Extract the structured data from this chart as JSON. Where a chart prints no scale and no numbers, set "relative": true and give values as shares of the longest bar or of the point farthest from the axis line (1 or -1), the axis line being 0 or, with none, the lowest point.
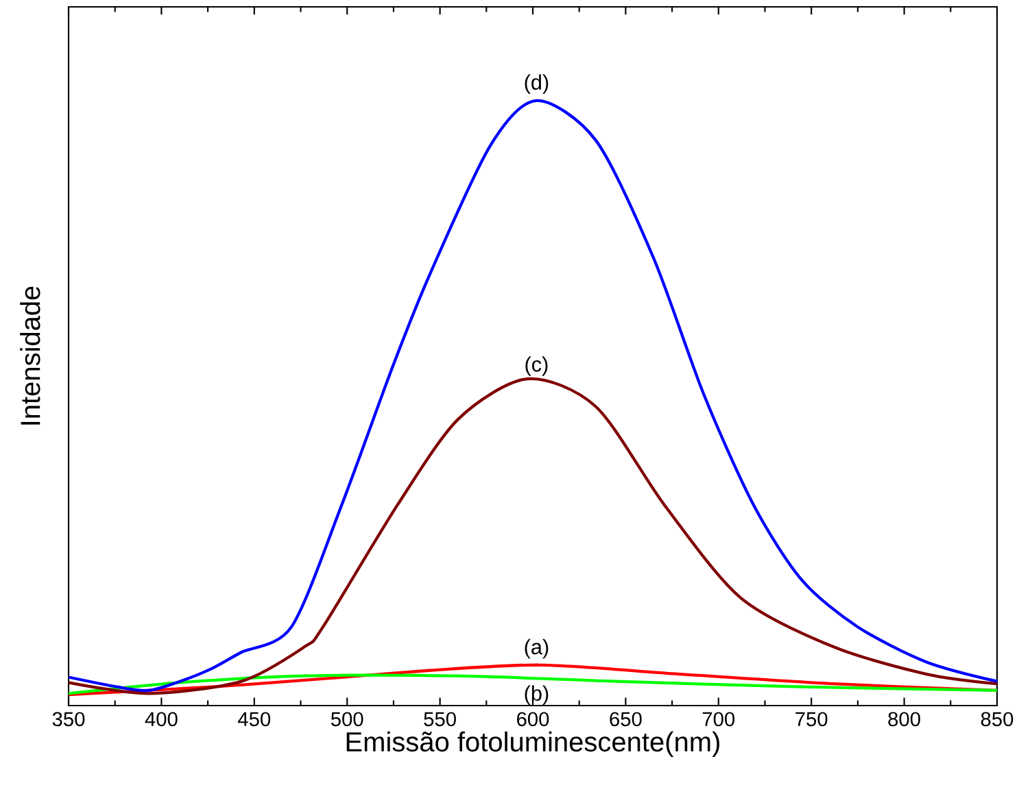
{
  "chart_data": {
    "type": "line",
    "xlabel": "Emissão fotoluminescente(nm)",
    "ylabel": "Intensidade",
    "relative": true,
    "xlim": [
      350,
      850
    ],
    "xticks": [
      350,
      400,
      450,
      500,
      550,
      600,
      650,
      700,
      750,
      800,
      850
    ],
    "series": [
      {
        "color": "#ff0000",
        "x": [
          350,
          443,
          544,
          605,
          679,
          762,
          850
        ],
        "values": [
          0.018,
          0.034,
          0.058,
          0.067,
          0.052,
          0.036,
          0.025
        ]
      },
      {
        "color": "#00ff00",
        "x": [
          350,
          410,
          477,
          560,
          645,
          745,
          850
        ],
        "values": [
          0.02,
          0.038,
          0.049,
          0.049,
          0.04,
          0.031,
          0.025
        ]
      },
      {
        "color": "#800000",
        "x": [
          350,
          393,
          443,
          477,
          487,
          527,
          560,
          597,
          634,
          671,
          712,
          762,
          812,
          850
        ],
        "values": [
          0.038,
          0.02,
          0.04,
          0.097,
          0.13,
          0.331,
          0.474,
          0.54,
          0.494,
          0.331,
          0.178,
          0.097,
          0.052,
          0.036
        ]
      },
      {
        "color": "#0000ff",
        "x": [
          350,
          376,
          393,
          410,
          427,
          443,
          470,
          497,
          524,
          544,
          577,
          602,
          634,
          665,
          692,
          719,
          745,
          775,
          812,
          850
        ],
        "values": [
          0.047,
          0.031,
          0.025,
          0.04,
          0.061,
          0.088,
          0.13,
          0.331,
          0.556,
          0.709,
          0.925,
          1.0,
          0.934,
          0.74,
          0.515,
          0.331,
          0.207,
          0.13,
          0.072,
          0.04
        ]
      }
    ],
    "annotations": [
      "(a)",
      "(b)",
      "(c)",
      "(d)"
    ]
  }
}
